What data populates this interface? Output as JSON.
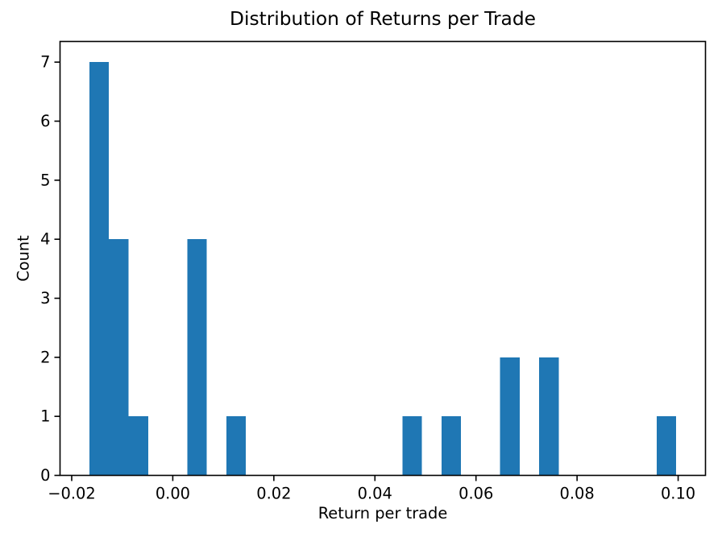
{
  "figure": {
    "background": "#ffffff"
  },
  "chart_data": {
    "type": "bar",
    "subtype": "histogram",
    "title": "Distribution of Returns per Trade",
    "xlabel": "Return per trade",
    "ylabel": "Count",
    "bar_color": "#1f77b4",
    "text_color": "#000000",
    "spine_color": "#000000",
    "grid": false,
    "legend": null,
    "bin_start": -0.0165,
    "bin_width": 0.00387,
    "bin_counts": [
      7,
      4,
      1,
      0,
      0,
      4,
      0,
      1,
      0,
      0,
      0,
      0,
      0,
      0,
      0,
      0,
      1,
      0,
      1,
      0,
      0,
      2,
      0,
      2,
      0,
      0,
      0,
      0,
      0,
      1
    ],
    "xlim": [
      -0.02231,
      0.10541
    ],
    "ylim": [
      0,
      7.35
    ],
    "xticks": [
      {
        "value": -0.02,
        "label": "−0.02"
      },
      {
        "value": 0.0,
        "label": "0.00"
      },
      {
        "value": 0.02,
        "label": "0.02"
      },
      {
        "value": 0.04,
        "label": "0.04"
      },
      {
        "value": 0.06,
        "label": "0.06"
      },
      {
        "value": 0.08,
        "label": "0.08"
      },
      {
        "value": 0.1,
        "label": "0.10"
      }
    ],
    "yticks": [
      {
        "value": 0,
        "label": "0"
      },
      {
        "value": 1,
        "label": "1"
      },
      {
        "value": 2,
        "label": "2"
      },
      {
        "value": 3,
        "label": "3"
      },
      {
        "value": 4,
        "label": "4"
      },
      {
        "value": 5,
        "label": "5"
      },
      {
        "value": 6,
        "label": "6"
      },
      {
        "value": 7,
        "label": "7"
      }
    ]
  }
}
